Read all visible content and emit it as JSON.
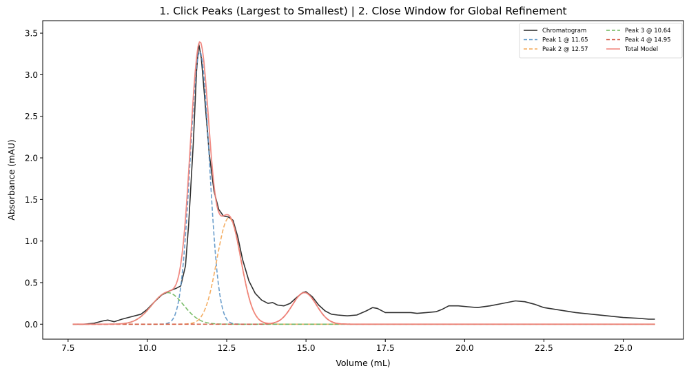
{
  "chart_data": {
    "type": "line",
    "title": "1. Click Peaks (Largest to Smallest) | 2. Close Window for Global Refinement",
    "xlabel": "Volume (mL)",
    "ylabel": "Absorbance (mAU)",
    "xlim": [
      6.7,
      26.9
    ],
    "ylim": [
      -0.18,
      3.65
    ],
    "xticks": [
      7.5,
      10.0,
      12.5,
      15.0,
      17.5,
      20.0,
      22.5,
      25.0
    ],
    "xtick_labels": [
      "7.5",
      "10.0",
      "12.5",
      "15.0",
      "17.5",
      "20.0",
      "22.5",
      "25.0"
    ],
    "yticks": [
      0.0,
      0.5,
      1.0,
      1.5,
      2.0,
      2.5,
      3.0,
      3.5
    ],
    "ytick_labels": [
      "0.0",
      "0.5",
      "1.0",
      "1.5",
      "2.0",
      "2.5",
      "3.0",
      "3.5"
    ],
    "grid": false,
    "legend_position": "upper right",
    "legend_columns": 2,
    "series": [
      {
        "name": "Chromatogram",
        "style": "solid",
        "color": "#262626",
        "x": [
          7.65,
          8.0,
          8.3,
          8.6,
          8.75,
          8.95,
          9.2,
          9.5,
          9.8,
          10.0,
          10.2,
          10.45,
          10.7,
          10.9,
          11.05,
          11.2,
          11.3,
          11.45,
          11.55,
          11.62,
          11.7,
          11.8,
          11.95,
          12.1,
          12.25,
          12.4,
          12.55,
          12.7,
          12.85,
          13.0,
          13.2,
          13.4,
          13.6,
          13.8,
          13.95,
          14.1,
          14.3,
          14.5,
          14.7,
          14.9,
          15.0,
          15.2,
          15.4,
          15.6,
          15.8,
          16.0,
          16.3,
          16.6,
          16.9,
          17.1,
          17.25,
          17.5,
          17.7,
          18.0,
          18.3,
          18.5,
          18.8,
          19.1,
          19.3,
          19.5,
          19.8,
          20.1,
          20.4,
          20.8,
          21.2,
          21.6,
          21.9,
          22.2,
          22.5,
          23.0,
          23.5,
          24.0,
          24.5,
          25.0,
          25.5,
          25.8,
          26.0
        ],
        "y": [
          0.0,
          0.0,
          0.01,
          0.04,
          0.05,
          0.03,
          0.06,
          0.09,
          0.12,
          0.18,
          0.26,
          0.35,
          0.4,
          0.43,
          0.46,
          0.7,
          1.2,
          2.2,
          3.05,
          3.37,
          3.2,
          2.75,
          2.05,
          1.6,
          1.38,
          1.3,
          1.29,
          1.25,
          1.05,
          0.78,
          0.52,
          0.37,
          0.29,
          0.25,
          0.26,
          0.23,
          0.22,
          0.25,
          0.32,
          0.38,
          0.39,
          0.33,
          0.23,
          0.16,
          0.12,
          0.11,
          0.1,
          0.11,
          0.16,
          0.2,
          0.19,
          0.14,
          0.14,
          0.14,
          0.14,
          0.13,
          0.14,
          0.15,
          0.18,
          0.22,
          0.22,
          0.21,
          0.2,
          0.22,
          0.25,
          0.28,
          0.27,
          0.24,
          0.2,
          0.17,
          0.14,
          0.12,
          0.1,
          0.08,
          0.07,
          0.06,
          0.06
        ]
      },
      {
        "name": "Peak 1 @ 11.65",
        "style": "dashed",
        "color": "#5b94c6",
        "center": 11.65,
        "amplitude": 3.28,
        "sigma": 0.3
      },
      {
        "name": "Peak 2 @ 12.57",
        "style": "dashed",
        "color": "#f3a553",
        "center": 12.57,
        "amplitude": 1.28,
        "sigma": 0.38
      },
      {
        "name": "Peak 3 @ 10.64",
        "style": "dashed",
        "color": "#6ab659",
        "center": 10.64,
        "amplitude": 0.38,
        "sigma": 0.5
      },
      {
        "name": "Peak 4 @ 14.95",
        "style": "dashed",
        "color": "#d1513a",
        "center": 14.95,
        "amplitude": 0.38,
        "sigma": 0.38
      },
      {
        "name": "Total Model",
        "style": "solid",
        "color": "#f08078",
        "note": "sum of Peaks 1-4"
      }
    ],
    "x_range_data": [
      7.65,
      26.0
    ]
  },
  "legend": {
    "items": [
      {
        "label": "Chromatogram",
        "color": "#262626",
        "style": "solid"
      },
      {
        "label": "Peak 1 @ 11.65",
        "color": "#5b94c6",
        "style": "dashed"
      },
      {
        "label": "Peak 2 @ 12.57",
        "color": "#f3a553",
        "style": "dashed"
      },
      {
        "label": "Peak 3 @ 10.64",
        "color": "#6ab659",
        "style": "dashed"
      },
      {
        "label": "Peak 4 @ 14.95",
        "color": "#d1513a",
        "style": "dashed"
      },
      {
        "label": "Total Model",
        "color": "#f08078",
        "style": "solid"
      }
    ]
  }
}
